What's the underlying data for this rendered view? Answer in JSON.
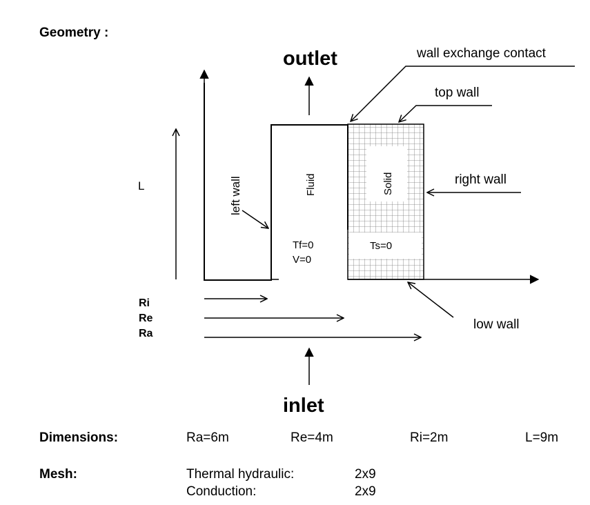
{
  "section_title": "Geometry :",
  "labels": {
    "outlet": "outlet",
    "inlet": "inlet",
    "wall_exchange_contact": "wall exchange contact",
    "top_wall": "top wall",
    "right_wall": "right wall",
    "left_wall": "left wall",
    "low_wall": "low wall",
    "fluid": "Fluid",
    "solid": "Solid",
    "tf": "Tf=0",
    "v": "V=0",
    "ts": "Ts=0",
    "L": "L",
    "Ri": "Ri",
    "Re": "Re",
    "Ra": "Ra"
  },
  "dimensions": {
    "label": "Dimensions:",
    "ra": "Ra=6m",
    "re": "Re=4m",
    "ri": "Ri=2m",
    "l": "L=9m"
  },
  "mesh": {
    "label": "Mesh:",
    "rows": [
      {
        "name": "Thermal hydraulic:",
        "value": "2x9"
      },
      {
        "name": "Conduction:",
        "value": "2x9"
      }
    ]
  }
}
